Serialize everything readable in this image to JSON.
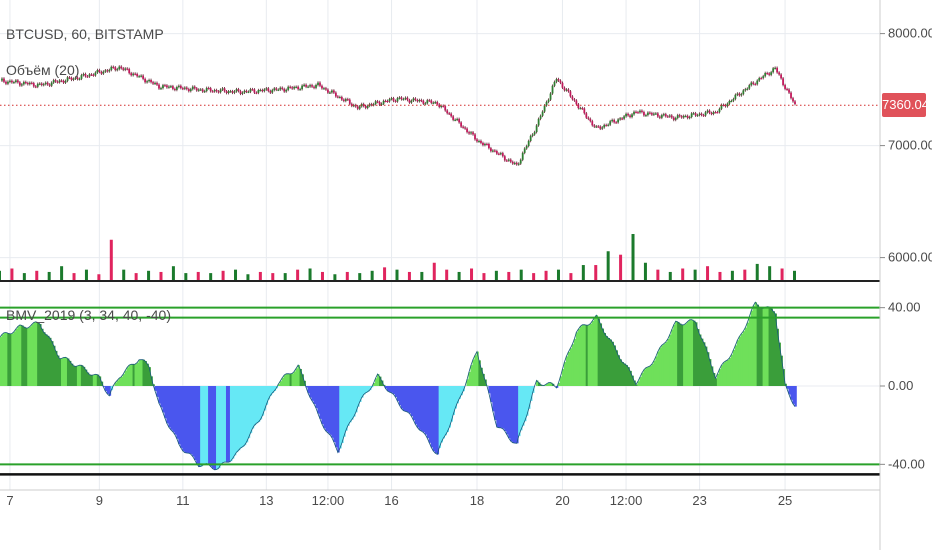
{
  "header": {
    "symbol_line": "BTCUSD, 60, BITSTAMP",
    "volume_label": "Объём (20)",
    "indicator_label": "BMV_2019 (3, 34, 40, -40)"
  },
  "colors": {
    "bg": "#ffffff",
    "grid": "#e8ebf0",
    "candle_up": "#2f7d32",
    "candle_down": "#c2185b",
    "candle_wick": "#5a1a2a",
    "price_line": "#d32f2f",
    "price_badge_bg": "#e0525a",
    "vol_up": "#1b7a2c",
    "vol_down": "#e0245e",
    "osc_pos_dark": "#3a9e3a",
    "osc_pos_light": "#6fe05a",
    "osc_neg_dark": "#4a56ee",
    "osc_neg_light": "#66e8f5",
    "level_line": "#2aa12a",
    "axis_line": "#111111"
  },
  "chart_data": [
    {
      "type": "line",
      "name": "price",
      "y_ticks": [
        "8000.00",
        "7000.00",
        "6000.00"
      ],
      "y_tick_values": [
        8000,
        7000,
        6000
      ],
      "ylim": [
        5800,
        8300
      ],
      "last_price": 7360.04,
      "last_price_label": "7360.04",
      "x_index_range": [
        0,
        400
      ],
      "x": [
        0,
        20,
        40,
        60,
        80,
        100,
        120,
        140,
        160,
        180,
        200,
        220,
        240,
        260,
        270,
        280,
        300,
        320,
        340,
        360,
        380,
        390,
        400
      ],
      "values": [
        7580,
        7540,
        7610,
        7700,
        7530,
        7500,
        7480,
        7500,
        7540,
        7340,
        7420,
        7380,
        7050,
        6820,
        7180,
        7600,
        7150,
        7300,
        7250,
        7300,
        7570,
        7690,
        7360
      ]
    },
    {
      "type": "bar",
      "name": "volume",
      "values": [
        8,
        10,
        6,
        8,
        7,
        12,
        6,
        9,
        5,
        35,
        9,
        6,
        8,
        7,
        12,
        6,
        7,
        6,
        8,
        9,
        5,
        7,
        6,
        6,
        9,
        10,
        7,
        5,
        7,
        6,
        8,
        11,
        9,
        7,
        7,
        15,
        9,
        7,
        10,
        6,
        8,
        7,
        9,
        6,
        8,
        9,
        6,
        13,
        13,
        25,
        22,
        40,
        15,
        9,
        7,
        10,
        9,
        12,
        7,
        8,
        9,
        14,
        12,
        10,
        8
      ],
      "ups": [
        1,
        0,
        1,
        0,
        1,
        1,
        0,
        1,
        0,
        0,
        1,
        0,
        1,
        0,
        1,
        1,
        0,
        1,
        0,
        1,
        1,
        0,
        0,
        1,
        0,
        1,
        0,
        1,
        0,
        1,
        1,
        0,
        1,
        0,
        1,
        0,
        0,
        1,
        0,
        0,
        1,
        0,
        1,
        0,
        0,
        1,
        0,
        1,
        0,
        1,
        0,
        1,
        1,
        0,
        1,
        0,
        1,
        0,
        0,
        1,
        0,
        1,
        1,
        0,
        1
      ]
    },
    {
      "type": "area",
      "name": "oscillator",
      "y_ticks": [
        "40.00",
        "0.00",
        "-40.00"
      ],
      "y_tick_values": [
        40,
        0,
        -40
      ],
      "ylim": [
        -48,
        48
      ],
      "levels": [
        40,
        -40
      ],
      "x": [
        0,
        10,
        20,
        30,
        40,
        50,
        55,
        60,
        70,
        75,
        80,
        90,
        100,
        110,
        120,
        130,
        140,
        150,
        160,
        170,
        180,
        190,
        200,
        210,
        220,
        230,
        240,
        250,
        260,
        270,
        280,
        290,
        300,
        310,
        320,
        330,
        340,
        350,
        360,
        370,
        380,
        390,
        395,
        400
      ],
      "values": [
        25,
        30,
        32,
        15,
        10,
        4,
        -5,
        5,
        14,
        10,
        -10,
        -30,
        -40,
        -42,
        -34,
        -18,
        2,
        10,
        -15,
        -33,
        -10,
        5,
        -8,
        -20,
        -35,
        -10,
        18,
        -20,
        -30,
        2,
        0,
        28,
        35,
        18,
        2,
        15,
        32,
        33,
        5,
        20,
        42,
        38,
        0,
        -10
      ],
      "x_ticks": [
        "7",
        "9",
        "11",
        "13",
        "12:00",
        "16",
        "18",
        "20",
        "12:00",
        "23",
        "25"
      ],
      "x_tick_index": [
        5,
        50,
        92,
        134,
        165,
        197,
        240,
        283,
        315,
        352,
        395
      ]
    }
  ]
}
